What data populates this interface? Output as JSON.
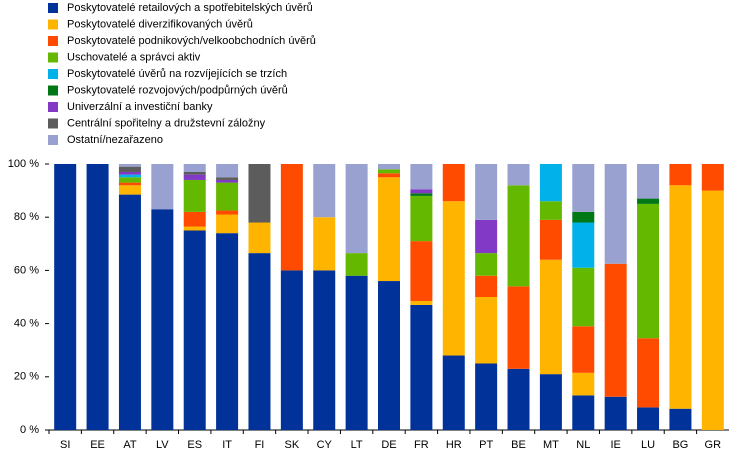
{
  "chart_data": {
    "type": "stacked_bar",
    "categories": [
      "SI",
      "EE",
      "AT",
      "LV",
      "ES",
      "IT",
      "FI",
      "SK",
      "CY",
      "LT",
      "DE",
      "FR",
      "HR",
      "PT",
      "BE",
      "MT",
      "NL",
      "IE",
      "LU",
      "BG",
      "GR"
    ],
    "series": [
      {
        "name": "Poskytovatelé retailových a spotřebitelských úvěrů",
        "color": "#003299",
        "values": [
          100,
          100,
          88.5,
          83,
          75,
          74,
          66.5,
          60,
          60,
          58,
          56,
          47,
          28,
          25,
          23,
          21,
          13,
          12.5,
          8.5,
          8,
          0
        ]
      },
      {
        "name": "Poskytovatelé diverzifikovaných úvěrů",
        "color": "#ffb400",
        "values": [
          0,
          0,
          3.5,
          0,
          1.5,
          7,
          11.5,
          0,
          20,
          0,
          39,
          1.5,
          58,
          25,
          0,
          43,
          8.5,
          0,
          0,
          84,
          90
        ]
      },
      {
        "name": "Poskytovatelé podnikových/velkoobchodních úvěrů",
        "color": "#ff4b00",
        "values": [
          0,
          0,
          1,
          0,
          5.5,
          1.5,
          0,
          40,
          0,
          0,
          1.5,
          22.5,
          14,
          8,
          31,
          15,
          17.5,
          50,
          26,
          8,
          10
        ]
      },
      {
        "name": "Uschovatelé a správci aktiv",
        "color": "#65b800",
        "values": [
          0,
          0,
          2,
          0,
          12,
          10.5,
          0,
          0,
          0,
          8.5,
          1.5,
          17,
          0,
          8.5,
          38,
          7,
          22,
          0,
          50.5,
          0,
          0
        ]
      },
      {
        "name": "Poskytovatelé úvěrů na rozvíjejících se trzích",
        "color": "#00b1ea",
        "values": [
          0,
          0,
          1,
          0,
          0,
          0,
          0,
          0,
          0,
          0,
          0,
          0,
          0,
          0,
          0,
          14,
          17,
          0,
          0,
          0,
          0
        ]
      },
      {
        "name": "Poskytovatelé rozvojových/podpůrných úvěrů",
        "color": "#007816",
        "values": [
          0,
          0,
          0,
          0,
          0,
          0,
          0,
          0,
          0,
          0,
          0,
          1,
          0,
          0,
          0,
          0,
          4,
          0,
          2,
          0,
          0
        ]
      },
      {
        "name": "Univerzální a investiční banky",
        "color": "#8139c6",
        "values": [
          0,
          0,
          1,
          0,
          2,
          1,
          0,
          0,
          0,
          0,
          0,
          1.5,
          0,
          12.5,
          0,
          0,
          0,
          0,
          0,
          0,
          0
        ]
      },
      {
        "name": "Centrální spořitelny a družstevní záložny",
        "color": "#5c5c5c",
        "values": [
          0,
          0,
          2,
          0,
          1,
          1,
          22,
          0,
          0,
          0,
          0,
          0,
          0,
          0,
          0,
          0,
          0,
          0,
          0,
          0,
          0
        ]
      },
      {
        "name": "Ostatní/nezařazeno",
        "color": "#98a1d0",
        "values": [
          0,
          0,
          1,
          17,
          3,
          5,
          0,
          0,
          20,
          33.5,
          2,
          9.5,
          0,
          21,
          8,
          0,
          18,
          37.5,
          13,
          0,
          0
        ]
      }
    ],
    "ylim": [
      0,
      100
    ],
    "yticks": [
      {
        "value": 0,
        "label": "0 %"
      },
      {
        "value": 20,
        "label": "20 %"
      },
      {
        "value": 40,
        "label": "40 %"
      },
      {
        "value": 60,
        "label": "60 %"
      },
      {
        "value": 80,
        "label": "80 %"
      },
      {
        "value": 100,
        "label": "100 %"
      }
    ]
  }
}
